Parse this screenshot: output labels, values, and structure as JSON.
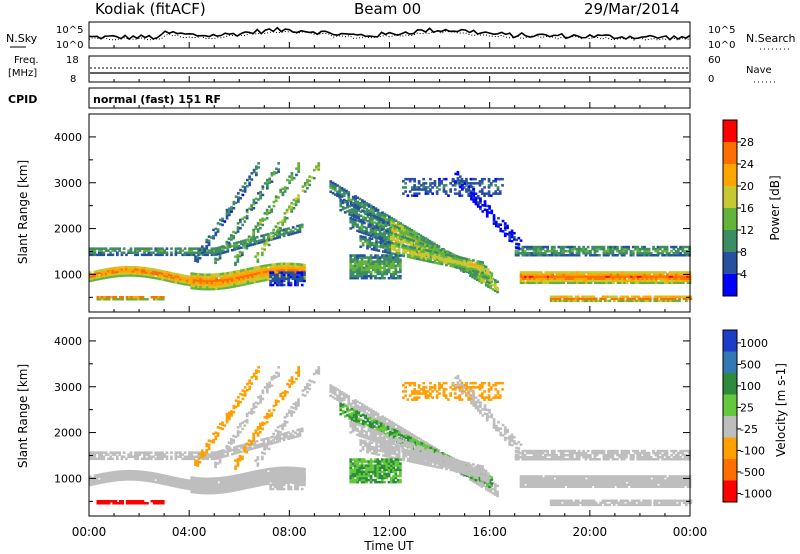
{
  "header": {
    "station": "Kodiak (fitACF)",
    "beam": "Beam 00",
    "date": "29/Mar/2014"
  },
  "panels": {
    "noise": {
      "left_label": "N.Sky",
      "right_label": "N.Search",
      "left_ticks": [
        "10^5",
        "10^0"
      ],
      "right_ticks": [
        "10^5",
        "10^0"
      ]
    },
    "freq": {
      "left_label_1": "Freq.",
      "left_label_2": "[MHz]",
      "right_label": "Nave",
      "left_ticks": [
        "18",
        "8"
      ],
      "right_ticks": [
        "60",
        "0"
      ]
    },
    "cpid": {
      "label": "CPID",
      "program": "normal (fast) 151 RF"
    }
  },
  "x_tick_labels": [
    "00:00",
    "04:00",
    "08:00",
    "12:00",
    "16:00",
    "20:00",
    "00:00"
  ],
  "xlabel": "Time UT",
  "colors": {
    "grey_scatter": "#bebebe",
    "power_scale": [
      "#0000ff",
      "#2850a0",
      "#3c8c64",
      "#64b43c",
      "#c8c832",
      "#ffa500",
      "#ff6e00",
      "#ff0000"
    ],
    "velocity_scale": [
      "#1e3cc8",
      "#3278b4",
      "#2d8c3c",
      "#64c83c",
      "#bebebe",
      "#ffa000",
      "#ff6e00",
      "#ff0000"
    ]
  },
  "chart_data": [
    {
      "type": "heatmap",
      "title": "Power",
      "ylabel": "Slant Range [km]",
      "xlabel": "Time UT",
      "x_range_hours": [
        0,
        24
      ],
      "ylim_km": [
        180,
        4500
      ],
      "y_ticks": [
        1000,
        2000,
        3000,
        4000
      ],
      "colorbar": {
        "label": "Power [dB]",
        "range": [
          0,
          32
        ],
        "ticks": [
          4,
          8,
          12,
          16,
          20,
          24,
          28
        ]
      }
    },
    {
      "type": "heatmap",
      "title": "Velocity",
      "ylabel": "Slant Range [km]",
      "xlabel": "Time UT",
      "x_range_hours": [
        0,
        24
      ],
      "ylim_km": [
        180,
        4500
      ],
      "y_ticks": [
        1000,
        2000,
        3000,
        4000
      ],
      "colorbar": {
        "label": "Velocity [m s-1]",
        "ticks": [
          "1000",
          "500",
          "100",
          "25",
          "-25",
          "-100",
          "-500",
          "-1000"
        ]
      }
    }
  ]
}
